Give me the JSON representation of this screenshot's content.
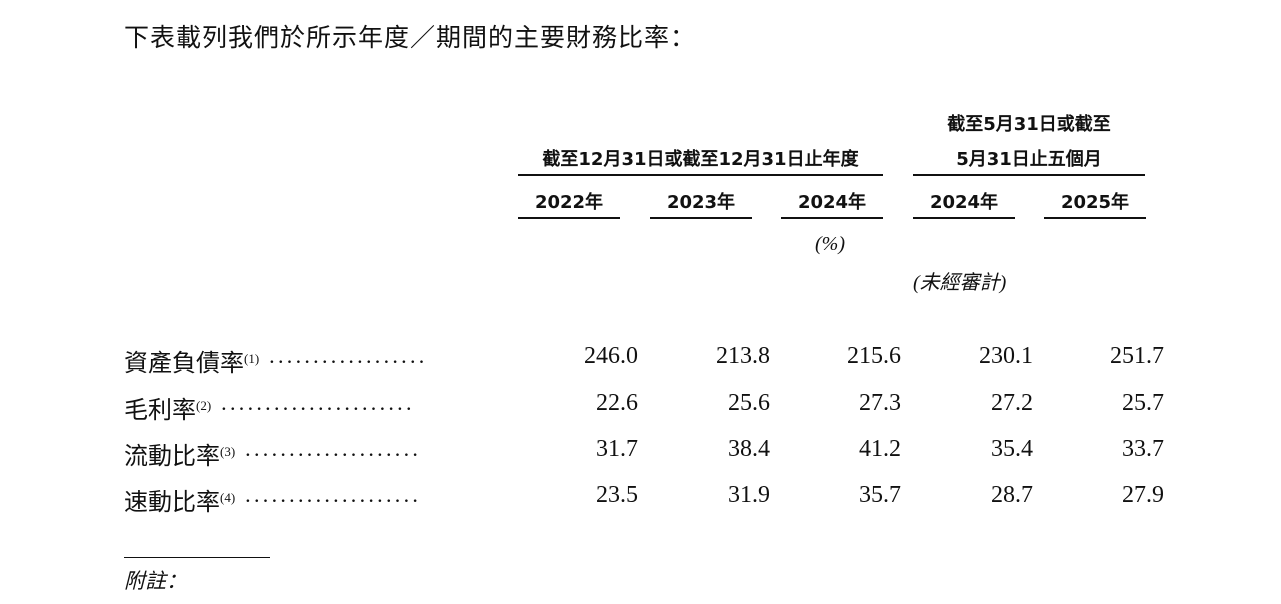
{
  "intro": "下表載列我們於所示年度／期間的主要財務比率：",
  "headers": {
    "group_annual": "截至12月31日或截至12月31日止年度",
    "group_interim_line1": "截至5月31日或截至",
    "group_interim_line2": "5月31日止五個月",
    "years": [
      "2022年",
      "2023年",
      "2024年",
      "2024年",
      "2025年"
    ],
    "unit": "(%)",
    "unaudited": "(未經審計)"
  },
  "rows": [
    {
      "label": "資產負債率",
      "note": "(1)",
      "values": [
        "246.0",
        "213.8",
        "215.6",
        "230.1",
        "251.7"
      ]
    },
    {
      "label": "毛利率",
      "note": "(2)",
      "values": [
        "22.6",
        "25.6",
        "27.3",
        "27.2",
        "25.7"
      ]
    },
    {
      "label": "流動比率",
      "note": "(3)",
      "values": [
        "31.7",
        "38.4",
        "41.2",
        "35.4",
        "33.7"
      ]
    },
    {
      "label": "速動比率",
      "note": "(4)",
      "values": [
        "23.5",
        "31.9",
        "35.7",
        "28.7",
        "27.9"
      ]
    }
  ],
  "footnote_heading": "附註："
}
